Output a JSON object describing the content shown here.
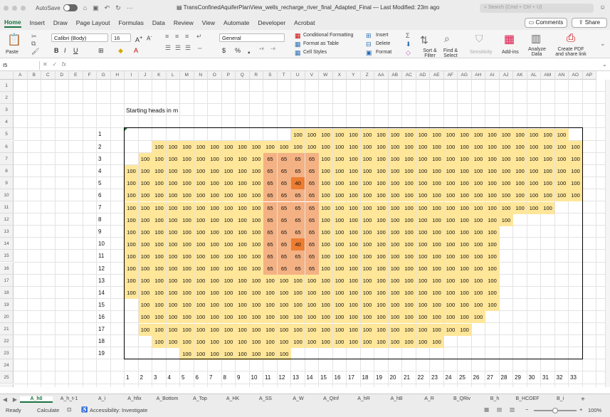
{
  "titlebar": {
    "autosave_label": "AutoSave",
    "document_title": "TransConfinedAquiferPlanView_wells_recharge_river_final_Adapted_Final",
    "modified": "— Last Modified: 23m ago",
    "search_placeholder": "Search (Cmd + Ctrl + U)"
  },
  "menu_tabs": [
    "Home",
    "Insert",
    "Draw",
    "Page Layout",
    "Formulas",
    "Data",
    "Review",
    "View",
    "Automate",
    "Developer",
    "Acrobat"
  ],
  "buttons": {
    "comments": "Comments",
    "share": "Share"
  },
  "ribbon": {
    "paste": "Paste",
    "font_name": "Calibri (Body)",
    "font_size": "16",
    "number_format": "General",
    "conditional_formatting": "Conditional Formatting",
    "format_as_table": "Format as Table",
    "cell_styles": "Cell Styles",
    "insert": "Insert",
    "delete": "Delete",
    "format": "Format",
    "sort_filter": "Sort & Filter",
    "find_select": "Find & Select",
    "sensitivity": "Sensitivity",
    "addins": "Add-ins",
    "analyze": "Analyze Data",
    "create_pdf": "Create PDF and share link"
  },
  "formula_bar": {
    "name_box": "I5",
    "fx": "fx"
  },
  "columns": [
    "A",
    "B",
    "C",
    "D",
    "E",
    "F",
    "G",
    "H",
    "I",
    "J",
    "K",
    "L",
    "M",
    "N",
    "O",
    "P",
    "Q",
    "R",
    "S",
    "T",
    "U",
    "V",
    "W",
    "X",
    "Y",
    "Z",
    "AA",
    "AB",
    "AC",
    "AD",
    "AE",
    "AF",
    "AG",
    "AH",
    "AI",
    "AJ",
    "AK",
    "AL",
    "AM",
    "AN",
    "AO",
    "AP"
  ],
  "rows": [
    "1",
    "2",
    "3",
    "4",
    "5",
    "6",
    "7",
    "8",
    "9",
    "10",
    "11",
    "12",
    "13",
    "14",
    "15",
    "16",
    "17",
    "18",
    "19",
    "20",
    "21",
    "22",
    "23",
    "24",
    "25",
    "26"
  ],
  "sheet": {
    "title": "Starting heads in m",
    "row_labels": [
      "1",
      "2",
      "3",
      "4",
      "5",
      "6",
      "7",
      "8",
      "9",
      "10",
      "11",
      "12",
      "13",
      "14",
      "15",
      "16",
      "17",
      "18",
      "19"
    ],
    "col_labels": [
      "1",
      "2",
      "3",
      "4",
      "5",
      "6",
      "7",
      "8",
      "9",
      "10",
      "11",
      "12",
      "13",
      "14",
      "15",
      "16",
      "17",
      "18",
      "19",
      "20",
      "21",
      "22",
      "23",
      "24",
      "25",
      "26",
      "27",
      "28",
      "29",
      "30",
      "31",
      "32",
      "33"
    ],
    "grid": [
      "............xxxxxxxxxxxxxxxxxxxx.",
      "..xxxxxxxxxxxxxxxxxxxxxxxxxxxxxxx",
      ".xxxxxxxxxbbbbxxxxxxxxxxxxxxxxxxx",
      "xxxxxxxxxxbbbbxxxxxxxxxxxxxxxxxxx",
      "xxxxxxxxxxbbcbxxxxxxxxxxxxxxxxxxx",
      "xxxxxxxxxxbbbbxxxxxxxxxxxxxxxxxxx",
      "xxxxxxxxxxbbbbxxxxxxxxxxxxxxxxx..",
      "xxxxxxxxxxbbbbxxxxxxxxxxxxxx.....",
      "xxxxxxxxxxbbbbxxxxxxxxxxxxx......",
      "xxxxxxxxxxbbcbxxxxxxxxxxxxx......",
      "xxxxxxxxxxbbbbxxxxxxxxxxxxx......",
      "xxxxxxxxxxbbbbxxxxxxxxxxxxx......",
      "xxxxxxxxxxxxxxxxxxxxxxxxxxx......",
      "xxxxxxxxxxxxxxxxxxxxxxxxxxx......",
      ".xxxxxxxxxxxxxxxxxxxxxxxxxx......",
      ".xxxxxxxxxxxxxxxxxxxxxxxxx.......",
      ".xxxxxxxxxxxxxxxxxxxxxxxx........",
      "..xxxxxxxxxxxxxxxxxxxxx..........",
      "....xxxxxxxx....................."
    ],
    "values": {
      "x": "100",
      "b": "65",
      "c": "40"
    },
    "colors": {
      "x": "#ffe699",
      "b": "#f4b183",
      "c": "#ed7d31"
    }
  },
  "sheet_tabs": [
    "A_h0",
    "A_h_t-1",
    "A_i",
    "A_hfix",
    "A_Bottom",
    "A_Top",
    "A_HK",
    "A_SS",
    "A_W",
    "A_QInf",
    "A_hR",
    "A_hB",
    "A_R",
    "B_QRiv",
    "B_h",
    "B_HCOEF",
    "B_i"
  ],
  "status": {
    "ready": "Ready",
    "calculate": "Calculate",
    "accessibility": "Accessibility: Investigate",
    "zoom": "100%"
  }
}
